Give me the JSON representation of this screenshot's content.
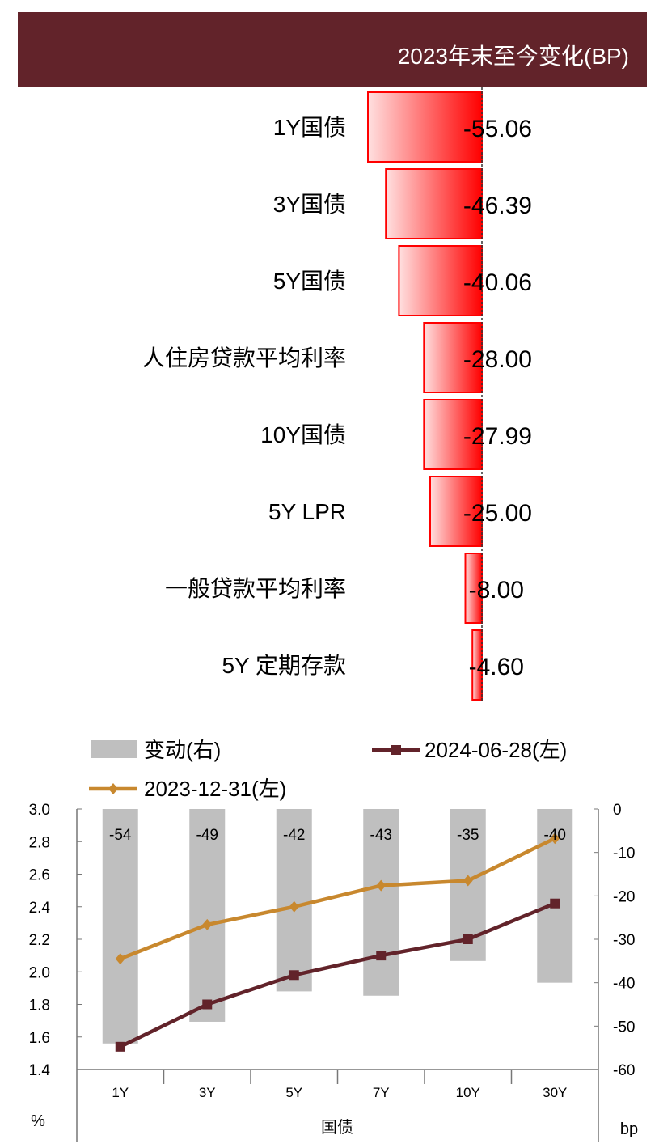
{
  "chart_data": [
    {
      "type": "bar",
      "orientation": "horizontal",
      "title": "2023年末至今变化(BP)",
      "categories": [
        "1Y国债",
        "3Y国债",
        "5Y国债",
        "人住房贷款平均利率",
        "10Y国债",
        "5Y LPR",
        "一般贷款平均利率",
        "5Y 定期存款"
      ],
      "values": [
        -55.06,
        -46.39,
        -40.06,
        -28.0,
        -27.99,
        -25.0,
        -8.0,
        -4.6
      ],
      "labels": [
        "-55.06",
        "-46.39",
        "-40.06",
        "-28.00",
        "-27.99",
        "-25.00",
        "-8.00",
        "-4.60"
      ],
      "bar_color": "#FF0000"
    },
    {
      "type": "bar+line",
      "categories": [
        "1Y",
        "3Y",
        "5Y",
        "7Y",
        "10Y",
        "30Y"
      ],
      "xlabel": "国债",
      "ylabel_left": "%",
      "ylabel_right": "bp",
      "ylim_left": [
        1.4,
        3.0
      ],
      "yticks_left": [
        "3.0",
        "2.8",
        "2.6",
        "2.4",
        "2.2",
        "2.0",
        "1.8",
        "1.6",
        "1.4"
      ],
      "ylim_right": [
        -60,
        0
      ],
      "yticks_right": [
        "0",
        "-10",
        "-20",
        "-30",
        "-40",
        "-50",
        "-60"
      ],
      "legend_position": "top",
      "series": [
        {
          "name": "变动(右)",
          "type": "bar",
          "axis": "right",
          "color": "#BFBFBF",
          "values": [
            -54,
            -49,
            -42,
            -43,
            -35,
            -40
          ],
          "labels": [
            "-54",
            "-49",
            "-42",
            "-43",
            "-35",
            "-40"
          ]
        },
        {
          "name": "2024-06-28(左)",
          "type": "line",
          "axis": "left",
          "color": "#62232A",
          "marker": "square",
          "values": [
            1.54,
            1.8,
            1.98,
            2.1,
            2.2,
            2.42
          ]
        },
        {
          "name": "2023-12-31(左)",
          "type": "line",
          "axis": "left",
          "color": "#C8882E",
          "marker": "diamond",
          "values": [
            2.08,
            2.29,
            2.4,
            2.53,
            2.56,
            2.82
          ]
        }
      ]
    }
  ]
}
